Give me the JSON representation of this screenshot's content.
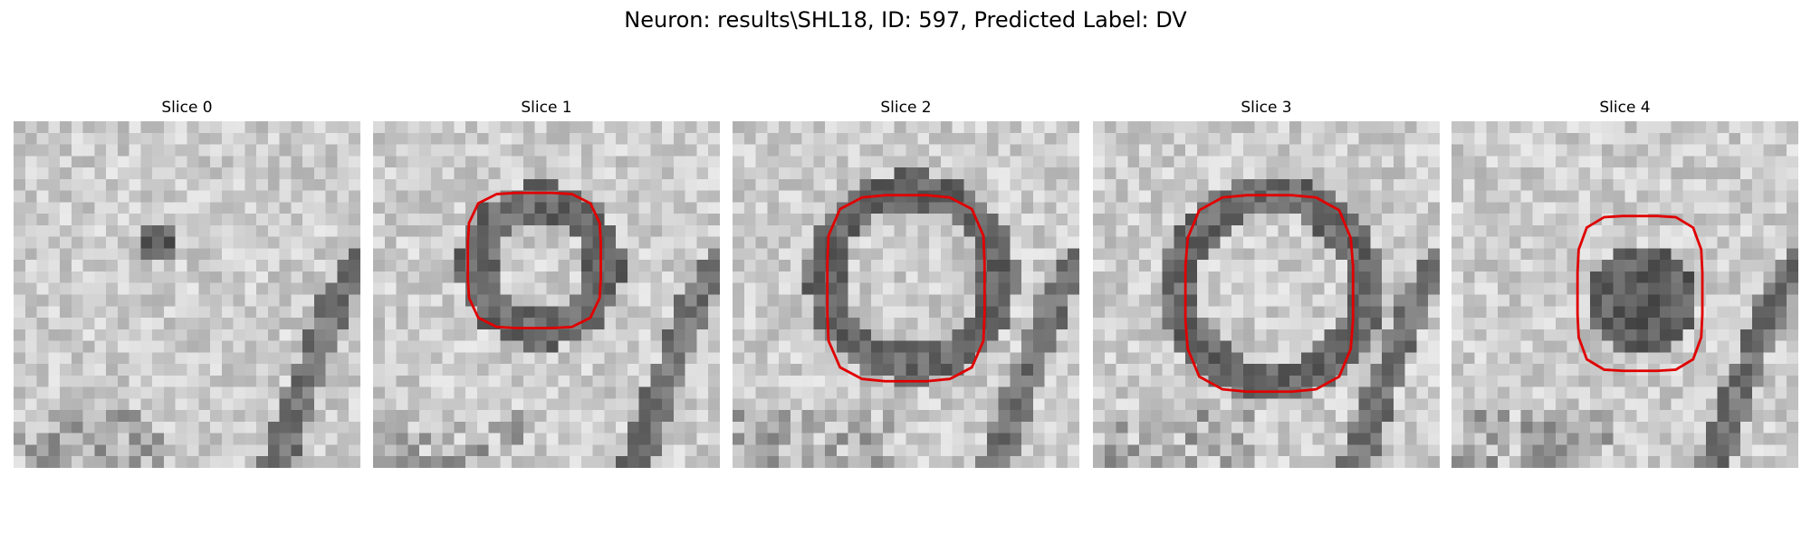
{
  "header": {
    "title": "Neuron: results\\SHL18, ID: 597, Predicted Label: DV"
  },
  "slices": [
    {
      "label": "Slice 0"
    },
    {
      "label": "Slice 1"
    },
    {
      "label": "Slice 2"
    },
    {
      "label": "Slice 3"
    },
    {
      "label": "Slice 4"
    }
  ]
}
